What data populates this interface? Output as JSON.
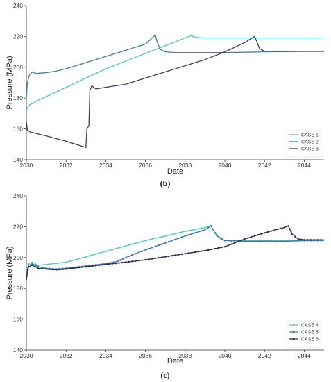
{
  "chart_data": [
    {
      "type": "line",
      "panel_label": "(b)",
      "xlabel": "Date",
      "ylabel": "Pressure (MPa)",
      "xlim": [
        2030,
        2045
      ],
      "ylim": [
        140,
        240
      ],
      "xticks": [
        2030,
        2032,
        2034,
        2036,
        2038,
        2040,
        2042,
        2044
      ],
      "yticks": [
        140,
        160,
        180,
        200,
        220,
        240
      ],
      "grid": false,
      "legend": "bottom-right",
      "series": [
        {
          "name": "CASE 1",
          "color": "#4fc1c1",
          "marker": "none",
          "x": [
            2030,
            2030.1,
            2030.5,
            2031,
            2032,
            2033,
            2034,
            2035,
            2036,
            2037,
            2038,
            2038.3,
            2038.4,
            2038.6,
            2039,
            2040,
            2041,
            2042,
            2043,
            2044,
            2045
          ],
          "y": [
            172,
            175,
            178,
            181,
            187,
            193,
            199,
            204,
            209,
            214,
            219,
            220.5,
            220,
            219.3,
            219,
            219,
            219,
            219,
            219,
            219,
            219
          ]
        },
        {
          "name": "CASE 2",
          "color": "#3f7ea6",
          "marker": "none",
          "x": [
            2030,
            2030.05,
            2030.15,
            2030.3,
            2030.5,
            2031,
            2031.5,
            2032,
            2033,
            2034,
            2035,
            2036,
            2036.5,
            2036.6,
            2036.75,
            2037,
            2037.5,
            2038,
            2040,
            2042,
            2045
          ],
          "y": [
            180,
            190,
            195,
            197,
            196,
            196.5,
            197.5,
            199,
            203,
            207,
            211,
            215,
            221,
            216,
            211.5,
            210,
            209.5,
            209.5,
            209.5,
            210,
            210.5
          ]
        },
        {
          "name": "CASE 3",
          "color": "#3c3a6e",
          "marker": "none",
          "x": [
            2030,
            2030.05,
            2030.2,
            2030.5,
            2031,
            2032,
            2033,
            2033.05,
            2033.15,
            2033.2,
            2033.3,
            2033.5,
            2034,
            2035,
            2036,
            2037,
            2038,
            2039,
            2040,
            2041,
            2041.5,
            2041.6,
            2041.75,
            2042,
            2043,
            2045
          ],
          "y": [
            165,
            159,
            158,
            157,
            155.5,
            152,
            148,
            160,
            162,
            185,
            188,
            186,
            187,
            189,
            193,
            197,
            201,
            205,
            210,
            216,
            220,
            217,
            212,
            210.5,
            210.3,
            210.3
          ]
        }
      ]
    },
    {
      "type": "line",
      "panel_label": "(c)",
      "xlabel": "Date",
      "ylabel": "Pressure (MPa)",
      "xlim": [
        2030,
        2045
      ],
      "ylim": [
        140,
        240
      ],
      "xticks": [
        2030,
        2032,
        2034,
        2036,
        2038,
        2040,
        2042,
        2044
      ],
      "yticks": [
        140,
        160,
        180,
        200,
        220,
        240
      ],
      "grid": false,
      "legend": "bottom-right",
      "series": [
        {
          "name": "CASE 4",
          "color": "#58c6c6",
          "marker": "triangle",
          "x": [
            2030,
            2030.1,
            2030.3,
            2030.6,
            2031,
            2032,
            2033,
            2034,
            2035,
            2036,
            2037,
            2038,
            2039,
            2039.3,
            2039.5,
            2039.8,
            2040,
            2041,
            2042,
            2043,
            2044,
            2045
          ],
          "y": [
            188,
            196,
            197,
            195,
            195.5,
            197,
            200.5,
            204,
            207.5,
            211,
            214,
            217,
            219.5,
            220.5,
            216,
            212,
            211,
            211,
            211,
            211,
            211,
            211
          ]
        },
        {
          "name": "CASE 5",
          "color": "#3d7ba5",
          "marker": "circle",
          "x": [
            2030,
            2030.1,
            2030.3,
            2030.6,
            2031,
            2031.5,
            2032,
            2033,
            2034,
            2034.6,
            2035,
            2036,
            2037,
            2038,
            2039,
            2039.3,
            2039.6,
            2040,
            2041,
            2042,
            2043,
            2044,
            2045
          ],
          "y": [
            187,
            195,
            196,
            194,
            193,
            192.5,
            193,
            194.5,
            196,
            197.5,
            200,
            205,
            209.5,
            214,
            218,
            220.5,
            214,
            211,
            210.5,
            210.5,
            210.5,
            211,
            211
          ]
        },
        {
          "name": "CASE 6",
          "color": "#2c2b52",
          "marker": "circle",
          "x": [
            2030,
            2030.1,
            2030.3,
            2030.6,
            2031,
            2031.5,
            2032,
            2033,
            2034,
            2035,
            2036,
            2037,
            2038,
            2039,
            2040,
            2041,
            2042,
            2043,
            2043.2,
            2043.4,
            2043.7,
            2044,
            2045
          ],
          "y": [
            186,
            194,
            195,
            193,
            192.5,
            192,
            192.5,
            194,
            195.5,
            197,
            198.5,
            200.5,
            202.5,
            204.5,
            207,
            212,
            216,
            219.5,
            220.5,
            215,
            212,
            211.5,
            211.5
          ]
        }
      ]
    }
  ]
}
